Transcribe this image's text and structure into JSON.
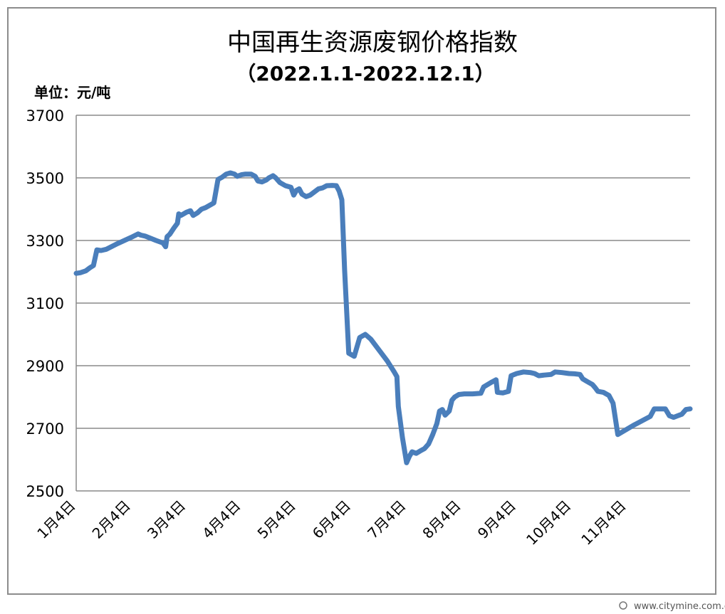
{
  "chart_data": {
    "type": "line",
    "title": "中国再生资源废钢价格指数",
    "subtitle": "（2022.1.1-2022.12.1）",
    "unit_label": "单位：元/吨",
    "ylim": [
      2500,
      3700
    ],
    "yticks": [
      2500,
      2700,
      2900,
      3100,
      3300,
      3500,
      3700
    ],
    "xtick_labels": [
      "1月4日",
      "2月4日",
      "3月4日",
      "4月4日",
      "5月4日",
      "6月4日",
      "7月4日",
      "8月4日",
      "9月4日",
      "10月4日",
      "11月4日"
    ],
    "grid": true,
    "legend": "none",
    "line_color": "#4a7ebb",
    "series": [
      {
        "values": [
          [
            0.0,
            3195
          ],
          [
            0.3,
            3197
          ],
          [
            0.7,
            3203
          ],
          [
            1.0,
            3213
          ],
          [
            1.25,
            3220
          ],
          [
            1.5,
            3270
          ],
          [
            1.8,
            3268
          ],
          [
            2.2,
            3272
          ],
          [
            3.0,
            3290
          ],
          [
            4.0,
            3310
          ],
          [
            4.5,
            3321
          ],
          [
            4.7,
            3317
          ],
          [
            5.0,
            3314
          ],
          [
            5.4,
            3307
          ],
          [
            5.8,
            3300
          ],
          [
            6.3,
            3292
          ],
          [
            6.5,
            3280
          ],
          [
            6.6,
            3312
          ],
          [
            6.8,
            3320
          ],
          [
            7.1,
            3340
          ],
          [
            7.35,
            3355
          ],
          [
            7.45,
            3385
          ],
          [
            7.6,
            3380
          ],
          [
            8.0,
            3390
          ],
          [
            8.3,
            3395
          ],
          [
            8.5,
            3380
          ],
          [
            8.8,
            3388
          ],
          [
            9.1,
            3400
          ],
          [
            9.4,
            3405
          ],
          [
            9.8,
            3415
          ],
          [
            10.0,
            3420
          ],
          [
            10.3,
            3495
          ],
          [
            10.6,
            3502
          ],
          [
            10.9,
            3512
          ],
          [
            11.2,
            3516
          ],
          [
            11.5,
            3512
          ],
          [
            11.7,
            3505
          ],
          [
            12.0,
            3510
          ],
          [
            12.3,
            3512
          ],
          [
            12.7,
            3512
          ],
          [
            13.0,
            3505
          ],
          [
            13.2,
            3490
          ],
          [
            13.5,
            3487
          ],
          [
            13.8,
            3493
          ],
          [
            14.0,
            3500
          ],
          [
            14.3,
            3507
          ],
          [
            14.5,
            3500
          ],
          [
            14.8,
            3485
          ],
          [
            15.2,
            3475
          ],
          [
            15.6,
            3470
          ],
          [
            15.8,
            3445
          ],
          [
            16.0,
            3460
          ],
          [
            16.2,
            3465
          ],
          [
            16.4,
            3448
          ],
          [
            16.7,
            3440
          ],
          [
            17.0,
            3445
          ],
          [
            17.3,
            3455
          ],
          [
            17.6,
            3465
          ],
          [
            17.9,
            3468
          ],
          [
            18.2,
            3475
          ],
          [
            18.6,
            3476
          ],
          [
            18.9,
            3475
          ],
          [
            19.1,
            3458
          ],
          [
            19.3,
            3430
          ],
          [
            19.5,
            3205
          ],
          [
            19.8,
            2940
          ],
          [
            20.2,
            2930
          ],
          [
            20.6,
            2990
          ],
          [
            21.0,
            3000
          ],
          [
            21.4,
            2985
          ],
          [
            22.0,
            2950
          ],
          [
            22.6,
            2915
          ],
          [
            23.1,
            2880
          ],
          [
            23.3,
            2865
          ],
          [
            23.4,
            2770
          ],
          [
            23.7,
            2670
          ],
          [
            24.0,
            2590
          ],
          [
            24.2,
            2610
          ],
          [
            24.4,
            2625
          ],
          [
            24.7,
            2620
          ],
          [
            25.0,
            2628
          ],
          [
            25.3,
            2635
          ],
          [
            25.6,
            2650
          ],
          [
            25.9,
            2680
          ],
          [
            26.2,
            2715
          ],
          [
            26.4,
            2755
          ],
          [
            26.6,
            2760
          ],
          [
            26.8,
            2742
          ],
          [
            27.1,
            2755
          ],
          [
            27.3,
            2790
          ],
          [
            27.5,
            2800
          ],
          [
            27.8,
            2808
          ],
          [
            28.2,
            2810
          ],
          [
            28.8,
            2810
          ],
          [
            29.4,
            2812
          ],
          [
            29.6,
            2832
          ],
          [
            29.9,
            2840
          ],
          [
            30.2,
            2848
          ],
          [
            30.5,
            2855
          ],
          [
            30.6,
            2815
          ],
          [
            31.0,
            2813
          ],
          [
            31.4,
            2818
          ],
          [
            31.6,
            2868
          ],
          [
            32.0,
            2875
          ],
          [
            32.5,
            2880
          ],
          [
            33.0,
            2878
          ],
          [
            33.3,
            2875
          ],
          [
            33.6,
            2868
          ],
          [
            34.0,
            2870
          ],
          [
            34.5,
            2872
          ],
          [
            34.8,
            2880
          ],
          [
            35.3,
            2878
          ],
          [
            35.8,
            2875
          ],
          [
            36.2,
            2874
          ],
          [
            36.6,
            2872
          ],
          [
            36.8,
            2858
          ],
          [
            37.1,
            2850
          ],
          [
            37.5,
            2840
          ],
          [
            37.7,
            2830
          ],
          [
            37.9,
            2818
          ],
          [
            38.3,
            2815
          ],
          [
            38.7,
            2805
          ],
          [
            39.0,
            2780
          ],
          [
            39.35,
            2680
          ],
          [
            40.5,
            2710
          ],
          [
            41.7,
            2738
          ],
          [
            42.0,
            2762
          ],
          [
            42.5,
            2762
          ],
          [
            42.8,
            2762
          ],
          [
            43.1,
            2740
          ],
          [
            43.4,
            2735
          ],
          [
            43.7,
            2740
          ],
          [
            44.0,
            2745
          ],
          [
            44.3,
            2760
          ],
          [
            44.6,
            2762
          ]
        ]
      }
    ]
  },
  "watermark": "www.citymine.com.cn"
}
